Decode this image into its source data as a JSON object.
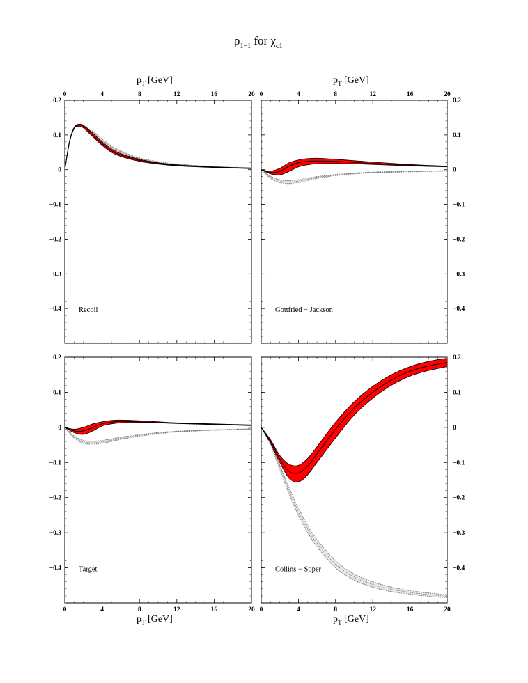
{
  "title": {
    "main": "ρ",
    "sub": "1−1",
    "mid": " for χ",
    "sub2": "c1"
  },
  "axis": {
    "x_title": "p",
    "x_title_sub": "T",
    "x_title_unit": " [GeV]",
    "x_ticks": [
      "0",
      "4",
      "8",
      "12",
      "16",
      "20"
    ],
    "y_ticks": [
      "0.2",
      "0.1",
      "0",
      "−0.1",
      "−0.2",
      "−0.3",
      "−0.4"
    ]
  },
  "colors": {
    "band_fill": "#ff0000",
    "ref_band": "#888888",
    "line": "#000000"
  },
  "chart_data": [
    {
      "type": "line",
      "label": "Recoil",
      "xlim": [
        0,
        20
      ],
      "ylim": [
        -0.5,
        0.2
      ],
      "series": [
        {
          "style": "red-band",
          "x": [
            0,
            0.5,
            1,
            1.5,
            2,
            3,
            4,
            5,
            6,
            8,
            10,
            12,
            16,
            20
          ],
          "center": [
            0,
            0.08,
            0.12,
            0.128,
            0.125,
            0.1,
            0.075,
            0.055,
            0.042,
            0.027,
            0.018,
            0.012,
            0.007,
            0.004
          ],
          "low": [
            0,
            0.078,
            0.118,
            0.125,
            0.12,
            0.095,
            0.07,
            0.05,
            0.038,
            0.024,
            0.016,
            0.011,
            0.006,
            0.003
          ],
          "high": [
            0,
            0.082,
            0.122,
            0.131,
            0.128,
            0.105,
            0.08,
            0.06,
            0.046,
            0.03,
            0.02,
            0.014,
            0.008,
            0.005
          ]
        },
        {
          "style": "dotted-band",
          "x": [
            0,
            0.5,
            1,
            1.5,
            2,
            3,
            4,
            5,
            6,
            8,
            10,
            12,
            16,
            20
          ],
          "low": [
            0,
            0.079,
            0.119,
            0.127,
            0.124,
            0.104,
            0.082,
            0.063,
            0.049,
            0.03,
            0.02,
            0.014,
            0.008,
            0.004
          ],
          "high": [
            0,
            0.081,
            0.121,
            0.129,
            0.127,
            0.11,
            0.088,
            0.069,
            0.054,
            0.034,
            0.023,
            0.016,
            0.009,
            0.005
          ]
        }
      ]
    },
    {
      "type": "line",
      "label": "Gottfried − Jackson",
      "xlim": [
        0,
        20
      ],
      "ylim": [
        -0.5,
        0.2
      ],
      "series": [
        {
          "style": "red-band",
          "x": [
            0,
            1,
            2,
            3,
            4,
            5,
            6,
            8,
            10,
            12,
            16,
            20
          ],
          "center": [
            0,
            -0.008,
            -0.005,
            0.01,
            0.02,
            0.024,
            0.025,
            0.024,
            0.021,
            0.018,
            0.013,
            0.009
          ],
          "low": [
            0,
            -0.012,
            -0.015,
            -0.005,
            0.008,
            0.014,
            0.017,
            0.018,
            0.017,
            0.015,
            0.011,
            0.008
          ],
          "high": [
            0,
            -0.004,
            0.004,
            0.02,
            0.028,
            0.032,
            0.033,
            0.03,
            0.026,
            0.022,
            0.015,
            0.01
          ]
        },
        {
          "style": "dotted-band",
          "x": [
            0,
            1,
            2,
            3,
            4,
            5,
            6,
            8,
            10,
            12,
            16,
            20
          ],
          "low": [
            0,
            -0.025,
            -0.037,
            -0.04,
            -0.037,
            -0.031,
            -0.025,
            -0.017,
            -0.012,
            -0.009,
            -0.006,
            -0.004
          ],
          "high": [
            0,
            -0.019,
            -0.029,
            -0.032,
            -0.029,
            -0.024,
            -0.02,
            -0.014,
            -0.01,
            -0.007,
            -0.005,
            -0.003
          ]
        }
      ]
    },
    {
      "type": "line",
      "label": "Target",
      "xlim": [
        0,
        20
      ],
      "ylim": [
        -0.5,
        0.2
      ],
      "series": [
        {
          "style": "red-band",
          "x": [
            0,
            1,
            2,
            3,
            4,
            5,
            6,
            8,
            10,
            12,
            16,
            20
          ],
          "center": [
            0,
            -0.01,
            -0.01,
            0,
            0.01,
            0.015,
            0.017,
            0.016,
            0.014,
            0.012,
            0.009,
            0.006
          ],
          "low": [
            0,
            -0.015,
            -0.02,
            -0.01,
            0.004,
            0.01,
            0.013,
            0.014,
            0.013,
            0.011,
            0.008,
            0.005
          ],
          "high": [
            0,
            -0.005,
            0,
            0.01,
            0.016,
            0.02,
            0.021,
            0.019,
            0.016,
            0.013,
            0.01,
            0.007
          ]
        },
        {
          "style": "dotted-band",
          "x": [
            0,
            1,
            2,
            3,
            4,
            5,
            6,
            8,
            10,
            12,
            16,
            20
          ],
          "low": [
            0,
            -0.03,
            -0.045,
            -0.048,
            -0.045,
            -0.04,
            -0.034,
            -0.025,
            -0.018,
            -0.013,
            -0.008,
            -0.005
          ],
          "high": [
            0,
            -0.024,
            -0.037,
            -0.04,
            -0.037,
            -0.033,
            -0.028,
            -0.021,
            -0.015,
            -0.011,
            -0.007,
            -0.004
          ]
        }
      ]
    },
    {
      "type": "line",
      "label": "Collins − Soper",
      "xlim": [
        0,
        20
      ],
      "ylim": [
        -0.5,
        0.2
      ],
      "series": [
        {
          "style": "red-band",
          "x": [
            0,
            1,
            2,
            3,
            4,
            5,
            6,
            8,
            10,
            12,
            14,
            16,
            18,
            20
          ],
          "center": [
            0,
            -0.04,
            -0.09,
            -0.125,
            -0.13,
            -0.11,
            -0.075,
            -0.005,
            0.055,
            0.1,
            0.135,
            0.16,
            0.175,
            0.185
          ],
          "low": [
            0,
            -0.045,
            -0.1,
            -0.145,
            -0.155,
            -0.135,
            -0.1,
            -0.03,
            0.035,
            0.083,
            0.12,
            0.146,
            0.162,
            0.173
          ],
          "high": [
            0,
            -0.035,
            -0.08,
            -0.105,
            -0.108,
            -0.088,
            -0.055,
            0.015,
            0.073,
            0.117,
            0.15,
            0.173,
            0.188,
            0.197
          ]
        },
        {
          "style": "dotted-band",
          "x": [
            0,
            1,
            2,
            3,
            4,
            5,
            6,
            8,
            10,
            12,
            14,
            16,
            18,
            20
          ],
          "low": [
            0,
            -0.05,
            -0.12,
            -0.19,
            -0.25,
            -0.3,
            -0.34,
            -0.4,
            -0.435,
            -0.455,
            -0.468,
            -0.475,
            -0.481,
            -0.485
          ],
          "high": [
            0,
            -0.044,
            -0.108,
            -0.172,
            -0.23,
            -0.28,
            -0.32,
            -0.38,
            -0.418,
            -0.44,
            -0.455,
            -0.465,
            -0.472,
            -0.477
          ]
        }
      ]
    }
  ]
}
